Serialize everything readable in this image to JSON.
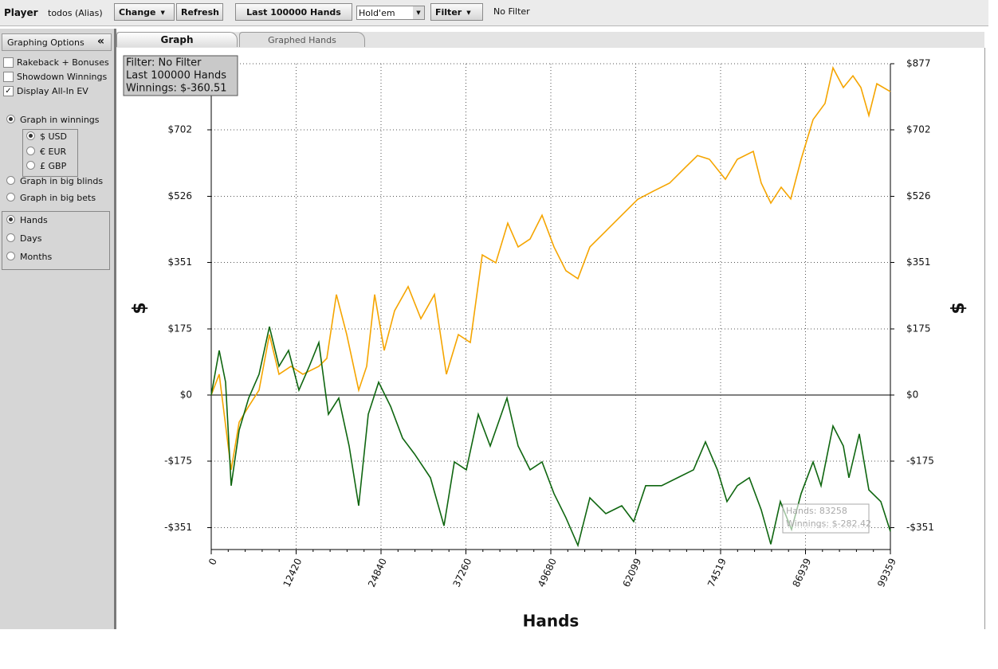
{
  "toolbar": {
    "player_label": "Player",
    "player": "todos (Alias)",
    "buttons": [
      {
        "label": "Change",
        "dropdown": true
      },
      {
        "label": "Refresh",
        "dropdown": false
      },
      {
        "label": "Last  100000 Hands",
        "dropdown": false
      }
    ],
    "game": "Hold'em",
    "filter_button": "Filter",
    "filter_status": "No Filter"
  },
  "sidebar": {
    "title": "Graphing Options",
    "collapse": "«",
    "checkboxes": [
      {
        "label": "Rakeback + Bonuses",
        "checked": false
      },
      {
        "label": "Showdown Winnings",
        "checked": false
      },
      {
        "label": "Display All-In EV",
        "checked": true
      }
    ],
    "units": [
      {
        "label": "Graph in winnings",
        "selected": true
      },
      {
        "label": "Graph in big blinds",
        "selected": false
      },
      {
        "label": "Graph in big bets",
        "selected": false
      }
    ],
    "currencies": [
      {
        "label": "$ USD",
        "selected": true
      },
      {
        "label": "€ EUR",
        "selected": false
      },
      {
        "label": "£ GBP",
        "selected": false
      }
    ],
    "x_modes": [
      {
        "label": "Hands",
        "selected": true
      },
      {
        "label": "Days",
        "selected": false
      },
      {
        "label": "Months",
        "selected": false
      }
    ]
  },
  "tabs": [
    "Graph",
    "Graphed Hands"
  ],
  "chart_data": {
    "type": "line",
    "x_label": "Hands",
    "y_label": "$",
    "info": [
      "Filter: No Filter",
      "Last  100000 Hands",
      "Winnings: $-360.51"
    ],
    "tooltip": [
      "Hands: 83258",
      "Winnings: $-282.42"
    ],
    "xlim": [
      0,
      99359
    ],
    "ylim": [
      -409,
      877
    ],
    "xticks": [
      0,
      12420,
      24840,
      37260,
      49680,
      62099,
      74519,
      86939,
      99359
    ],
    "yticks": [
      {
        "value": -351,
        "label": "-$351"
      },
      {
        "value": -175,
        "label": "-$175"
      },
      {
        "value": 0,
        "label": "$0"
      },
      {
        "value": 175,
        "label": "$175"
      },
      {
        "value": 351,
        "label": "$351"
      },
      {
        "value": 526,
        "label": "$526"
      },
      {
        "value": 702,
        "label": "$702"
      },
      {
        "value": 877,
        "label": "$877"
      }
    ],
    "grid": true,
    "series": [
      {
        "color": "#f5a500",
        "x": [
          0,
          1166,
          2915,
          4082,
          5481,
          6997,
          8513,
          9913,
          11662,
          13411,
          15743,
          16910,
          18309,
          19825,
          21574,
          22741,
          23907,
          25306,
          26823,
          28805,
          30671,
          32654,
          34403,
          36152,
          37901,
          39651,
          41633,
          43382,
          44898,
          46647,
          48396,
          50146,
          51895,
          53644,
          55393,
          57726,
          60058,
          62392,
          64724,
          67056,
          69389,
          71138,
          72887,
          75219,
          76968,
          79300,
          80466,
          81866,
          83382,
          84781,
          86298,
          88047,
          89796,
          90962,
          92478,
          93877,
          95043,
          96210,
          97376,
          99359
        ],
        "values": [
          0,
          55,
          -198,
          -72,
          -30,
          13,
          160,
          55,
          76,
          55,
          76,
          97,
          266,
          160,
          13,
          76,
          266,
          118,
          223,
          287,
          202,
          266,
          55,
          160,
          139,
          371,
          350,
          455,
          392,
          413,
          476,
          392,
          329,
          308,
          392,
          434,
          476,
          518,
          540,
          561,
          603,
          634,
          624,
          571,
          624,
          645,
          561,
          508,
          550,
          519,
          624,
          729,
          772,
          866,
          814,
          845,
          814,
          740,
          824,
          803
        ]
      },
      {
        "color": "#0f6610",
        "x": [
          0,
          1166,
          2099,
          2915,
          4082,
          5481,
          6997,
          8513,
          9913,
          11312,
          12828,
          14344,
          15743,
          17143,
          18659,
          20175,
          21574,
          22974,
          24490,
          26240,
          27989,
          29738,
          32071,
          34053,
          35569,
          37318,
          39067,
          40816,
          43265,
          44898,
          46647,
          48396,
          50146,
          51895,
          53644,
          55393,
          57726,
          60058,
          61807,
          63557,
          65889,
          68221,
          70554,
          72303,
          74052,
          75452,
          76968,
          78717,
          80466,
          81866,
          83258,
          84898,
          86298,
          88047,
          89213,
          90962,
          92478,
          93294,
          94810,
          96210,
          97959,
          99359
        ],
        "values": [
          0,
          118,
          34,
          -240,
          -93,
          -8,
          55,
          181,
          76,
          118,
          13,
          76,
          139,
          -51,
          -8,
          -135,
          -293,
          -51,
          34,
          -30,
          -114,
          -156,
          -219,
          -346,
          -177,
          -198,
          -51,
          -135,
          -8,
          -135,
          -198,
          -177,
          -261,
          -325,
          -398,
          -272,
          -314,
          -293,
          -335,
          -240,
          -240,
          -219,
          -198,
          -124,
          -198,
          -282,
          -240,
          -219,
          -304,
          -395,
          -282,
          -356,
          -261,
          -177,
          -240,
          -82,
          -135,
          -219,
          -103,
          -251,
          -282,
          -361
        ]
      }
    ]
  }
}
